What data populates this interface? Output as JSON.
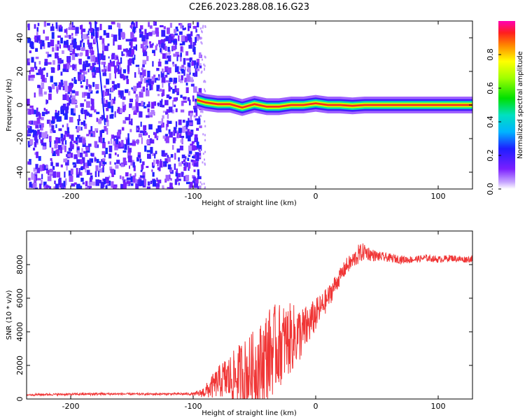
{
  "title": "C2E6.2023.288.08.16.G23",
  "chart_data": [
    {
      "type": "heatmap",
      "name": "spectrogram",
      "xlabel": "Height of straight line (km)",
      "ylabel": "Frequency (Hz)",
      "xlim": [
        -236,
        128
      ],
      "ylim": [
        -50,
        50
      ],
      "xticks": [
        -200,
        -100,
        0,
        100
      ],
      "yticks": [
        -40,
        -20,
        0,
        20,
        40
      ],
      "colorbar": {
        "label": "Normalized spectral amplitude",
        "range": [
          0,
          1
        ],
        "ticks": [
          0.0,
          0.2,
          0.4,
          0.6,
          0.8
        ],
        "tick_labels": [
          "0.0",
          "0.2",
          "0.4",
          "0.6",
          "0.8"
        ],
        "colormap": "rainbow"
      },
      "noise_region": {
        "x_range": [
          -236,
          -95
        ],
        "amplitude": [
          0.05,
          0.25
        ],
        "color_hint": "#7a1fff"
      },
      "blank_region": {
        "x_range": [
          -95,
          128
        ]
      },
      "signal_trace": [
        {
          "x": -97,
          "freq": 3.0
        },
        {
          "x": -90,
          "freq": 1.5
        },
        {
          "x": -80,
          "freq": 0.5
        },
        {
          "x": -70,
          "freq": 0.5
        },
        {
          "x": -60,
          "freq": -1.5
        },
        {
          "x": -50,
          "freq": 0.5
        },
        {
          "x": -40,
          "freq": -1.0
        },
        {
          "x": -30,
          "freq": -1.0
        },
        {
          "x": -20,
          "freq": 0.0
        },
        {
          "x": -10,
          "freq": 0.0
        },
        {
          "x": 0,
          "freq": 1.0
        },
        {
          "x": 10,
          "freq": 0.0
        },
        {
          "x": 20,
          "freq": 0.0
        },
        {
          "x": 30,
          "freq": -0.5
        },
        {
          "x": 40,
          "freq": 0.0
        },
        {
          "x": 60,
          "freq": 0.0
        },
        {
          "x": 80,
          "freq": 0.0
        },
        {
          "x": 100,
          "freq": 0.0
        },
        {
          "x": 128,
          "freq": 0.0
        }
      ],
      "streak": {
        "x": [
          -180,
          -172
        ],
        "freq": [
          50,
          -12
        ]
      }
    },
    {
      "type": "line",
      "name": "snr",
      "xlabel": "Height of straight line (km)",
      "ylabel": "SNR (10 * v/v)",
      "xlim": [
        -236,
        128
      ],
      "ylim": [
        0,
        10000
      ],
      "xticks": [
        -200,
        -100,
        0,
        100
      ],
      "yticks": [
        0,
        2000,
        4000,
        6000,
        8000
      ],
      "color": "#f03535",
      "series": [
        {
          "x": [
            -236,
            -220,
            -200,
            -180,
            -160,
            -140,
            -120,
            -100,
            -95,
            -90,
            -85,
            -80,
            -75,
            -70,
            -65,
            -60,
            -55,
            -50,
            -45,
            -40,
            -35,
            -30,
            -25,
            -20,
            -15,
            -10,
            -5,
            0,
            5,
            10,
            15,
            20,
            25,
            30,
            35,
            40,
            45,
            50,
            60,
            70,
            80,
            90,
            100,
            110,
            120,
            128
          ],
          "values": [
            250,
            270,
            280,
            300,
            300,
            290,
            300,
            300,
            320,
            450,
            700,
            1000,
            1200,
            1200,
            1300,
            1600,
            1500,
            1800,
            2000,
            2600,
            2900,
            3200,
            3400,
            3600,
            3800,
            4000,
            4500,
            5000,
            5500,
            6000,
            6700,
            7300,
            7900,
            8200,
            8600,
            8800,
            8600,
            8500,
            8400,
            8300,
            8300,
            8400,
            8300,
            8400,
            8300,
            8350
          ],
          "spread": [
            60,
            60,
            60,
            80,
            60,
            60,
            60,
            80,
            200,
            400,
            700,
            900,
            1200,
            1500,
            1700,
            2000,
            2200,
            2400,
            2600,
            2800,
            2700,
            2500,
            2300,
            2100,
            1800,
            1500,
            1200,
            1000,
            800,
            700,
            600,
            500,
            500,
            500,
            600,
            500,
            400,
            300,
            250,
            250,
            200,
            200,
            200,
            200,
            200,
            200
          ]
        }
      ]
    }
  ]
}
